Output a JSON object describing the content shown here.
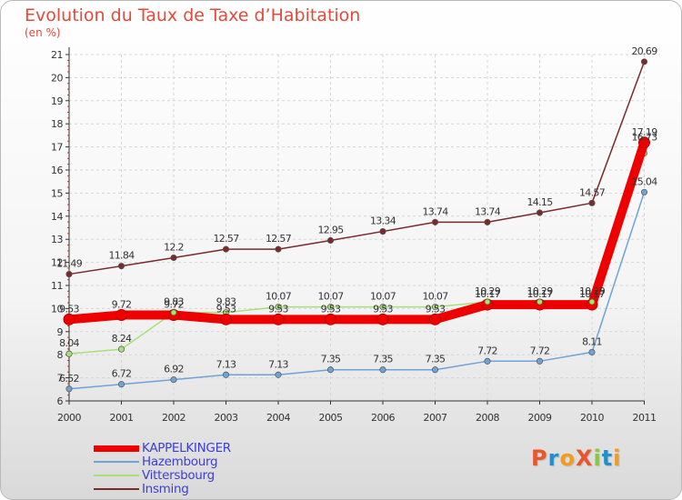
{
  "title": "Evolution du Taux de Taxe d’Habitation",
  "subtitle": "(en %)",
  "logo_text": "ProXiti",
  "logo_colors": [
    "#e8562b",
    "#1f8fd0",
    "#f29c1f",
    "#e8562b",
    "#8cc63f",
    "#1f8fd0",
    "#f29c1f"
  ],
  "chart_data": {
    "type": "line",
    "title": "Evolution du Taux de Taxe d’Habitation",
    "ylabel": "(en %)",
    "x": [
      "2000",
      "2001",
      "2002",
      "2003",
      "2004",
      "2005",
      "2006",
      "2007",
      "2008",
      "2009",
      "2010",
      "2011"
    ],
    "ylim": [
      6,
      21
    ],
    "yticks": [
      6,
      7,
      8,
      9,
      10,
      11,
      12,
      13,
      14,
      15,
      16,
      17,
      18,
      19,
      20,
      21
    ],
    "grid": true,
    "legend_position": "bottom-left",
    "series": [
      {
        "name": "KAPPELKINGER",
        "color": "#ee0000",
        "values": [
          9.53,
          9.72,
          9.72,
          9.53,
          9.53,
          9.53,
          9.53,
          9.53,
          10.17,
          10.17,
          10.17,
          17.19
        ],
        "labels": [
          "9.53",
          "9.72",
          "9.72",
          "9.53",
          "9.53",
          "9.53",
          "9.53",
          "9.53",
          "10.17",
          "10.17",
          "10.17",
          "17.19"
        ]
      },
      {
        "name": "Hazembourg",
        "color": "#6fa3d6",
        "values": [
          6.52,
          6.72,
          6.92,
          7.13,
          7.13,
          7.35,
          7.35,
          7.35,
          7.72,
          7.72,
          8.11,
          15.04
        ],
        "labels": [
          "6.52",
          "6.72",
          "6.92",
          "7.13",
          "7.13",
          "7.35",
          "7.35",
          "7.35",
          "7.72",
          "7.72",
          "8.11",
          "15.04"
        ]
      },
      {
        "name": "Vittersbourg",
        "color": "#a6e07a",
        "values": [
          8.04,
          8.24,
          9.83,
          9.83,
          10.07,
          10.07,
          10.07,
          10.07,
          10.29,
          10.29,
          10.29,
          16.73
        ],
        "labels": [
          "8.04",
          "8.24",
          "9.83",
          "9.83",
          "10.07",
          "10.07",
          "10.07",
          "10.07",
          "10.29",
          "10.29",
          "10.29",
          "16.73"
        ]
      },
      {
        "name": "Insming",
        "color": "#7a2a2a",
        "values": [
          11.49,
          11.84,
          12.2,
          12.57,
          12.57,
          12.95,
          13.34,
          13.74,
          13.74,
          14.15,
          14.57,
          20.69
        ],
        "labels": [
          "11.49",
          "11.84",
          "12.2",
          "12.57",
          "12.57",
          "12.95",
          "13.34",
          "13.74",
          "13.74",
          "14.15",
          "14.57",
          "20.69"
        ]
      }
    ]
  }
}
